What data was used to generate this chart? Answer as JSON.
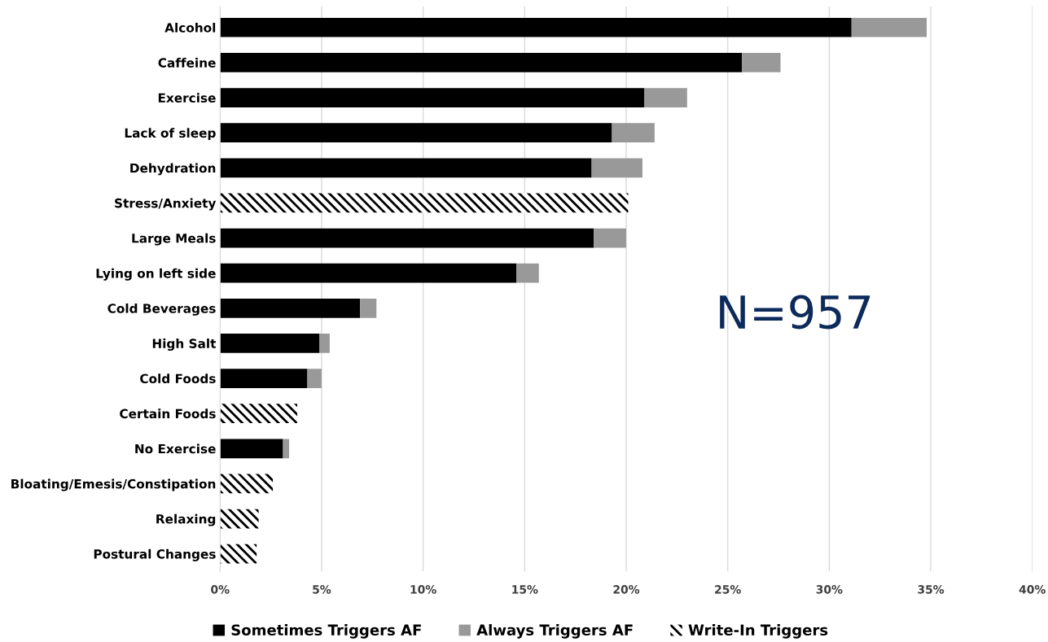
{
  "chart_data": {
    "type": "bar",
    "orientation": "horizontal",
    "stacked": true,
    "categories": [
      "Alcohol",
      "Caffeine",
      "Exercise",
      "Lack of sleep",
      "Dehydration",
      "Stress/Anxiety",
      "Large Meals",
      "Lying on left side",
      "Cold Beverages",
      "High Salt",
      "Cold Foods",
      "Certain Foods",
      "No Exercise",
      "Bloating/Emesis/Constipation",
      "Relaxing",
      "Postural Changes"
    ],
    "series": [
      {
        "name": "Sometimes Triggers AF",
        "color": "#000000",
        "values": [
          31.1,
          25.7,
          20.9,
          19.3,
          18.3,
          null,
          18.4,
          14.6,
          6.9,
          4.9,
          4.3,
          null,
          3.1,
          null,
          null,
          null
        ]
      },
      {
        "name": "Always Triggers AF",
        "color": "#999999",
        "values": [
          3.7,
          1.9,
          2.1,
          2.1,
          2.5,
          null,
          1.6,
          1.1,
          0.8,
          0.5,
          0.7,
          null,
          0.3,
          null,
          null,
          null
        ]
      },
      {
        "name": "Write-In Triggers",
        "color": "#000000",
        "values": [
          null,
          null,
          null,
          null,
          null,
          20.1,
          null,
          null,
          null,
          null,
          null,
          3.8,
          null,
          2.6,
          1.9,
          1.8
        ]
      }
    ],
    "xlim": [
      0,
      40
    ],
    "xticks": [
      {
        "value": 0,
        "label": "0%"
      },
      {
        "value": 5,
        "label": "5%"
      },
      {
        "value": 10,
        "label": "10%"
      },
      {
        "value": 15,
        "label": "15%"
      },
      {
        "value": 20,
        "label": "20%"
      },
      {
        "value": 25,
        "label": "25%"
      },
      {
        "value": 30,
        "label": "30%"
      },
      {
        "value": 35,
        "label": "35%"
      },
      {
        "value": 40,
        "label": "40%"
      }
    ],
    "grid": "x",
    "legend": "bottom",
    "annotations": [
      "N=957"
    ]
  }
}
